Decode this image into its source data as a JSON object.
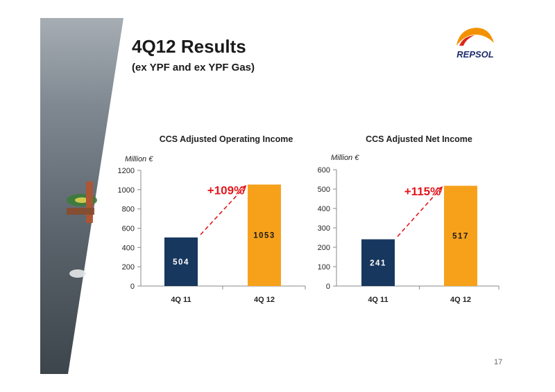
{
  "slide": {
    "title": "4Q12 Results",
    "subtitle": "(ex YPF and ex YPF Gas)",
    "page_number": "17",
    "logo_text": "REPSOL"
  },
  "colors": {
    "bar_prev": "#17375e",
    "bar_curr": "#f7a11b",
    "growth_text": "#e3171c",
    "arrow": "#e3171c",
    "logo_red": "#d9281d",
    "logo_orange": "#f39200",
    "logo_navy": "#1d2b6b"
  },
  "chart_data": [
    {
      "type": "bar",
      "title": "CCS Adjusted Operating Income",
      "unit_label": "Million €",
      "categories": [
        "4Q 11",
        "4Q 12"
      ],
      "values": [
        504,
        1053
      ],
      "data_labels": [
        "504",
        "1053"
      ],
      "ylim": [
        0,
        1200
      ],
      "yticks": [
        0,
        200,
        400,
        600,
        800,
        1000,
        1200
      ],
      "growth_label": "+109%",
      "grid": false
    },
    {
      "type": "bar",
      "title": "CCS Adjusted Net Income",
      "unit_label": "Million €",
      "categories": [
        "4Q 11",
        "4Q 12"
      ],
      "values": [
        241,
        517
      ],
      "data_labels": [
        "241",
        "517"
      ],
      "ylim": [
        0,
        600
      ],
      "yticks": [
        0,
        100,
        200,
        300,
        400,
        500,
        600
      ],
      "growth_label": "+115%",
      "grid": false
    }
  ]
}
